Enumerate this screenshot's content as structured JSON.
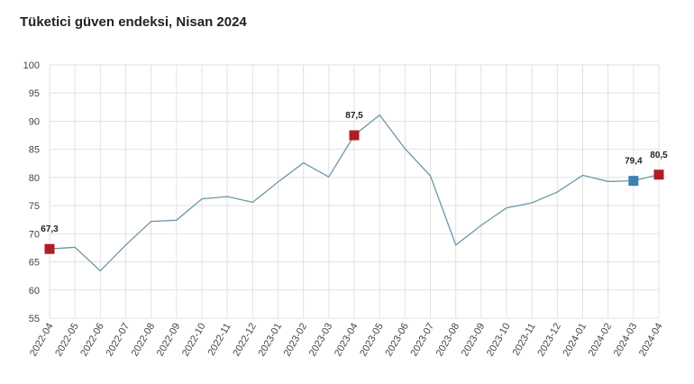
{
  "chart_data": {
    "type": "line",
    "title": "Tüketici güven endeksi, Nisan 2024",
    "x": [
      "2022-04",
      "2022-05",
      "2022-06",
      "2022-07",
      "2022-08",
      "2022-09",
      "2022-10",
      "2022-11",
      "2022-12",
      "2023-01",
      "2023-02",
      "2023-03",
      "2023-04",
      "2023-05",
      "2023-06",
      "2023-07",
      "2023-08",
      "2023-09",
      "2023-10",
      "2023-11",
      "2023-12",
      "2024-01",
      "2024-02",
      "2024-03",
      "2024-04"
    ],
    "series": [
      {
        "values": [
          67.3,
          67.6,
          63.4,
          68.0,
          72.2,
          72.4,
          76.2,
          76.6,
          75.6,
          79.2,
          82.6,
          80.1,
          87.5,
          91.1,
          85.1,
          80.3,
          68.0,
          71.5,
          74.6,
          75.5,
          77.4,
          80.4,
          79.3,
          79.4,
          80.5
        ]
      }
    ],
    "ylim": [
      55,
      100
    ],
    "yticks": [
      55,
      60,
      65,
      70,
      75,
      80,
      85,
      90,
      95,
      100
    ],
    "grid": true,
    "line_color": "#6e97a4",
    "highlights": [
      {
        "x": "2022-04",
        "label": "67,3",
        "color": "#b01c24"
      },
      {
        "x": "2023-04",
        "label": "87,5",
        "color": "#b01c24"
      },
      {
        "x": "2024-03",
        "label": "79,4",
        "color": "#3a7fb5"
      },
      {
        "x": "2024-04",
        "label": "80,5",
        "color": "#b01c24"
      }
    ]
  }
}
